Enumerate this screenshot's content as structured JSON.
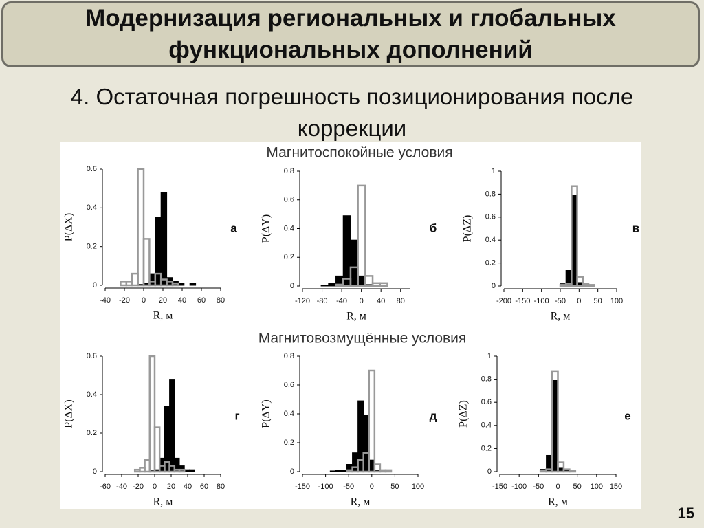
{
  "slide": {
    "title": "Модернизация региональных и глобальных функциональных дополнений",
    "subtitle": "4. Остаточная погрешность позиционирования после коррекции",
    "number": "15"
  },
  "headings": [
    "Магнитоспокойные условия",
    "Магнитовозмущённые условия"
  ],
  "chart_data": [
    {
      "type": "histogram",
      "label": "а",
      "xlabel": "R, м",
      "ylabel": "P(ΔX)",
      "bins": [
        -24,
        -18,
        -12,
        -6,
        0,
        6,
        12,
        18,
        24,
        30,
        36,
        42,
        48,
        54,
        60
      ],
      "series": [
        {
          "color": "#000000",
          "values": [
            0,
            0,
            0,
            0.005,
            0.01,
            0.06,
            0.35,
            0.48,
            0.04,
            0.02,
            0.01,
            0,
            0.01,
            0
          ]
        },
        {
          "color": "#999999",
          "values": [
            0.02,
            0.02,
            0.06,
            0.6,
            0.24,
            0.02,
            0.06,
            0.03,
            0.02,
            0.01,
            0,
            0,
            0,
            0
          ]
        }
      ],
      "xlim": [
        -40,
        80
      ],
      "xticks": [
        -40,
        -20,
        0,
        20,
        40,
        60,
        80
      ],
      "ylim": [
        0,
        0.6
      ],
      "yticks": [
        0,
        0.2,
        0.4,
        0.6
      ]
    },
    {
      "type": "histogram",
      "label": "б",
      "xlabel": "R, м",
      "ylabel": "P(ΔY)",
      "bins": [
        -82,
        -67,
        -52,
        -37,
        -22,
        -7,
        8,
        23,
        38,
        53
      ],
      "series": [
        {
          "color": "#000000",
          "values": [
            0.005,
            0.02,
            0.07,
            0.49,
            0.32,
            0.07,
            0.01,
            0,
            0
          ]
        },
        {
          "color": "#999999",
          "values": [
            0,
            0,
            0.01,
            0.05,
            0.13,
            0.7,
            0.07,
            0.02,
            0.02
          ]
        }
      ],
      "xlim": [
        -120,
        100
      ],
      "xticks": [
        -120,
        -80,
        -40,
        0,
        40,
        80
      ],
      "ylim": [
        0,
        0.8
      ],
      "yticks": [
        0,
        0.2,
        0.4,
        0.6,
        0.8
      ]
    },
    {
      "type": "histogram",
      "label": "в",
      "xlabel": "R, м",
      "ylabel": "P(ΔZ)",
      "bins": [
        -50,
        -35,
        -20,
        -5,
        10,
        25,
        40
      ],
      "series": [
        {
          "color": "#000000",
          "values": [
            0.02,
            0.14,
            0.79,
            0.03,
            0.01,
            0
          ]
        },
        {
          "color": "#999999",
          "values": [
            0.01,
            0.02,
            0.87,
            0.08,
            0.02,
            0.01
          ]
        }
      ],
      "xlim": [
        -200,
        100
      ],
      "xticks": [
        -200,
        -150,
        -100,
        -50,
        0,
        50,
        100
      ],
      "ylim": [
        0,
        1
      ],
      "yticks": [
        0,
        0.2,
        0.4,
        0.6,
        0.8,
        1
      ]
    },
    {
      "type": "histogram",
      "label": "г",
      "xlabel": "R, м",
      "ylabel": "P(ΔX)",
      "bins": [
        -24,
        -18,
        -12,
        -6,
        0,
        6,
        12,
        18,
        24,
        30,
        36,
        42,
        48,
        54,
        60
      ],
      "series": [
        {
          "color": "#000000",
          "values": [
            0,
            0,
            0,
            0.005,
            0.01,
            0.07,
            0.34,
            0.48,
            0.07,
            0.03,
            0.01,
            0.01,
            0,
            0
          ]
        },
        {
          "color": "#999999",
          "values": [
            0.01,
            0.02,
            0.06,
            0.6,
            0.23,
            0.03,
            0.05,
            0.03,
            0.01,
            0.01,
            0,
            0,
            0,
            0
          ]
        }
      ],
      "xlim": [
        -60,
        80
      ],
      "xticks": [
        -60,
        -40,
        -20,
        0,
        20,
        40,
        60,
        80
      ],
      "ylim": [
        0,
        0.6
      ],
      "yticks": [
        0,
        0.2,
        0.4,
        0.6
      ]
    },
    {
      "type": "histogram",
      "label": "д",
      "xlabel": "R, м",
      "ylabel": "P(ΔY)",
      "bins": [
        -90,
        -78,
        -66,
        -54,
        -42,
        -30,
        -18,
        -6,
        6,
        18,
        30,
        42,
        54
      ],
      "series": [
        {
          "color": "#000000",
          "values": [
            0.005,
            0.01,
            0.01,
            0.05,
            0.13,
            0.49,
            0.39,
            0.08,
            0.01,
            0,
            0,
            0
          ]
        },
        {
          "color": "#999999",
          "values": [
            0,
            0,
            0,
            0.01,
            0.03,
            0.08,
            0.13,
            0.7,
            0.05,
            0.01,
            0.01,
            0
          ]
        }
      ],
      "xlim": [
        -150,
        100
      ],
      "xticks": [
        -150,
        -100,
        -50,
        0,
        50,
        100
      ],
      "ylim": [
        0,
        0.8
      ],
      "yticks": [
        0,
        0.2,
        0.4,
        0.6,
        0.8
      ]
    },
    {
      "type": "histogram",
      "label": "е",
      "xlabel": "R, м",
      "ylabel": "P(ΔZ)",
      "bins": [
        -45,
        -30,
        -15,
        0,
        15,
        30,
        45
      ],
      "series": [
        {
          "color": "#000000",
          "values": [
            0.02,
            0.14,
            0.79,
            0.03,
            0.01,
            0
          ]
        },
        {
          "color": "#999999",
          "values": [
            0.01,
            0.02,
            0.87,
            0.08,
            0.02,
            0.01
          ]
        }
      ],
      "xlim": [
        -150,
        150
      ],
      "xticks": [
        -150,
        -100,
        -50,
        0,
        50,
        100,
        150
      ],
      "ylim": [
        0,
        1
      ],
      "yticks": [
        0,
        0.2,
        0.4,
        0.6,
        0.8,
        1
      ]
    }
  ]
}
